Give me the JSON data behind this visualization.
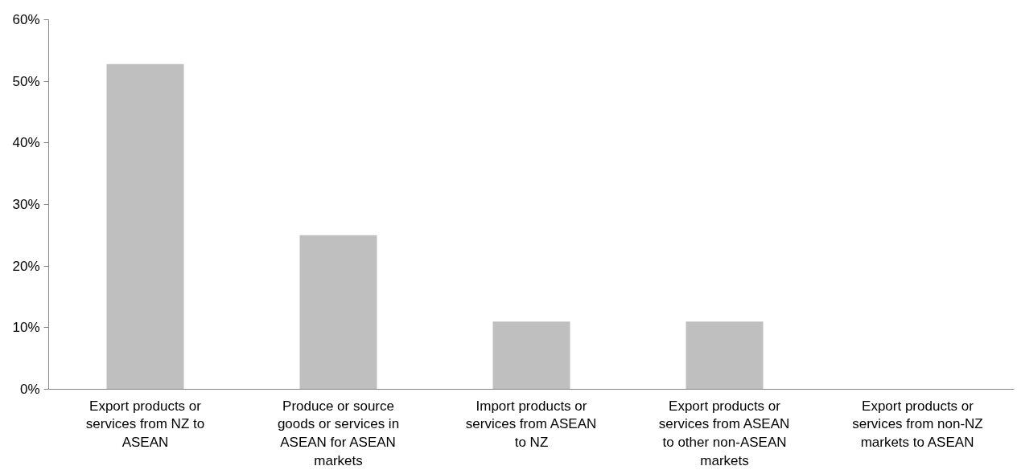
{
  "chart_data": {
    "type": "bar",
    "categories": [
      "Export products or services from NZ to ASEAN",
      "Produce or source goods or services in ASEAN for ASEAN markets",
      "Import products or services from ASEAN to NZ",
      "Export products or services from ASEAN to other non-ASEAN markets",
      "Export products or services from non-NZ markets to ASEAN"
    ],
    "values": [
      52.8,
      25,
      11,
      11,
      0
    ],
    "color": "#bfbfbf",
    "ylim": [
      0,
      60
    ],
    "yticks": [
      {
        "value": 0,
        "label": "0%"
      },
      {
        "value": 10,
        "label": "10%"
      },
      {
        "value": 20,
        "label": "20%"
      },
      {
        "value": 30,
        "label": "30%"
      },
      {
        "value": 40,
        "label": "40%"
      },
      {
        "value": 50,
        "label": "50%"
      },
      {
        "value": 60,
        "label": "60%"
      }
    ],
    "grid": false
  }
}
